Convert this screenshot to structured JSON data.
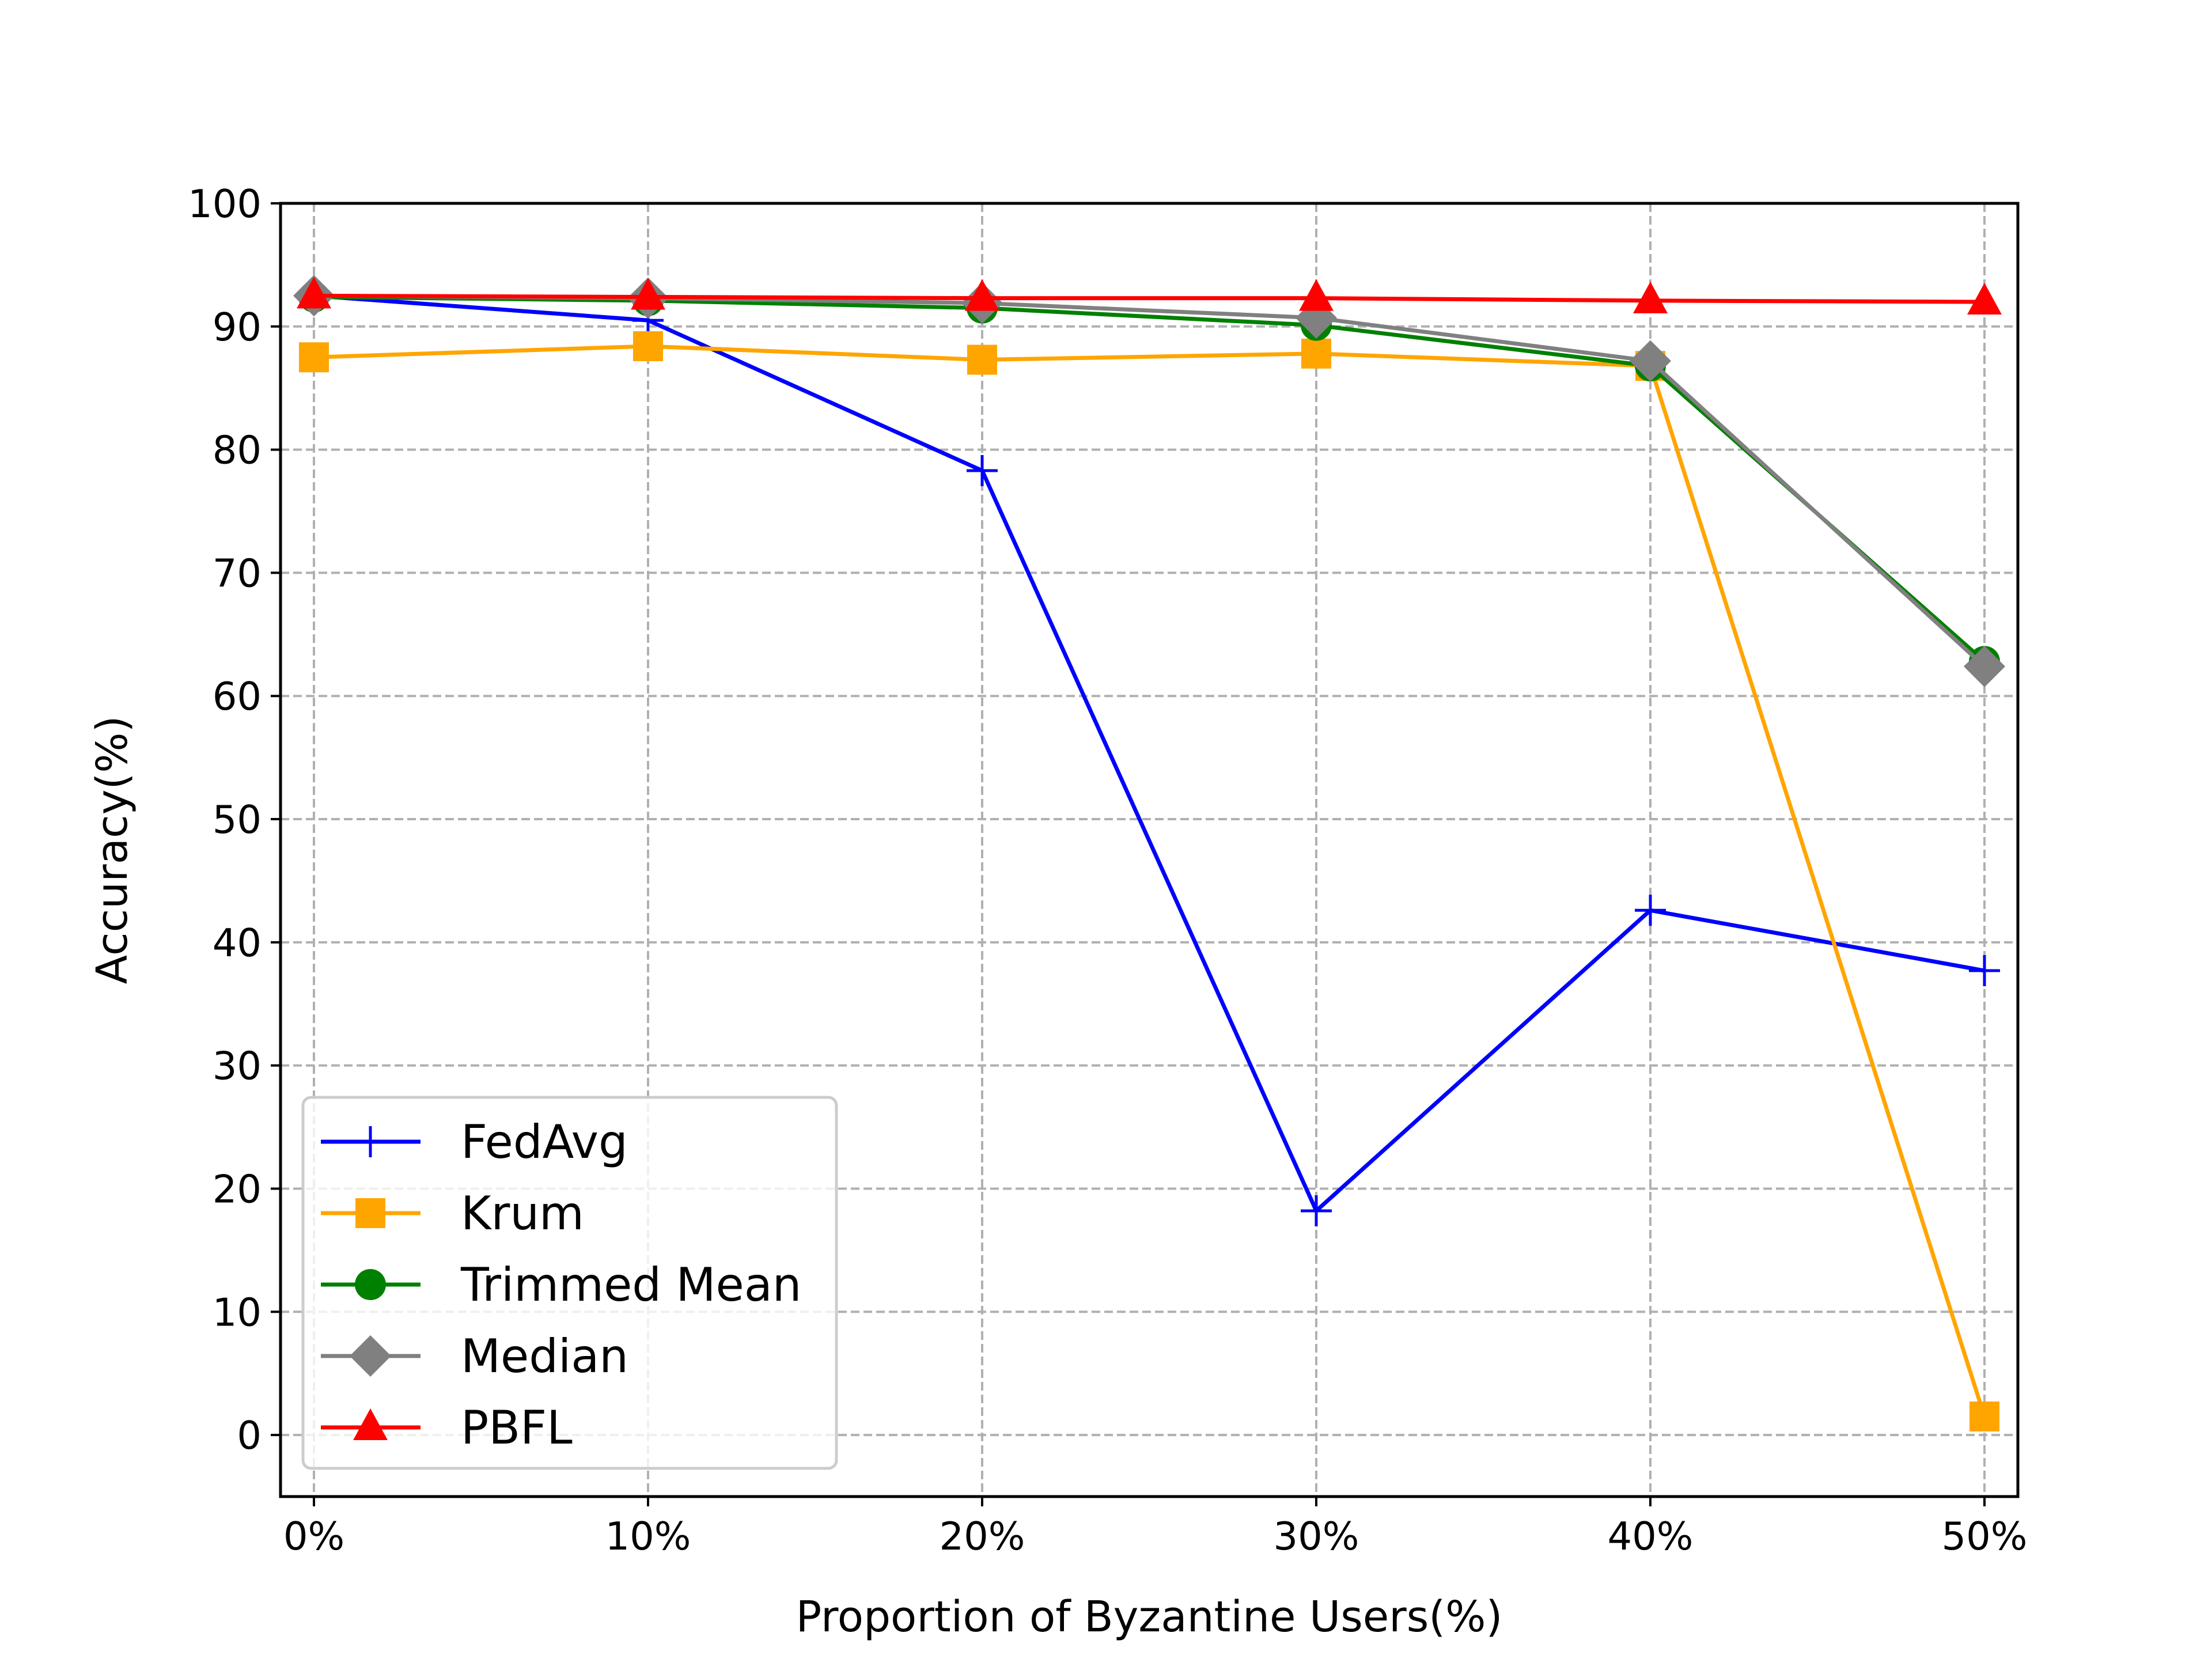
{
  "chart_data": {
    "type": "line",
    "title": "",
    "xlabel": "Proportion of Byzantine Users(%)",
    "ylabel": "Accuracy(%)",
    "categories": [
      "0%",
      "10%",
      "20%",
      "30%",
      "40%",
      "50%"
    ],
    "x": [
      0,
      10,
      20,
      30,
      40,
      50
    ],
    "ylim": [
      -5,
      100
    ],
    "yticks": [
      0,
      10,
      20,
      30,
      40,
      50,
      60,
      70,
      80,
      90,
      100
    ],
    "grid": true,
    "legend_position": "lower-left",
    "series": [
      {
        "name": "FedAvg",
        "color": "#0000ff",
        "marker": "plus",
        "values": [
          92.5,
          90.5,
          78.3,
          18.2,
          42.6,
          37.7
        ]
      },
      {
        "name": "Krum",
        "color": "#ffa500",
        "marker": "square",
        "values": [
          87.5,
          88.4,
          87.3,
          87.8,
          86.8,
          1.5
        ]
      },
      {
        "name": "Trimmed Mean",
        "color": "#008000",
        "marker": "circle",
        "values": [
          92.4,
          92.1,
          91.5,
          90.1,
          86.8,
          62.8
        ]
      },
      {
        "name": "Median",
        "color": "#808080",
        "marker": "diamond",
        "values": [
          92.5,
          92.3,
          91.9,
          90.7,
          87.2,
          62.4
        ]
      },
      {
        "name": "PBFL",
        "color": "#ff0000",
        "marker": "triangle",
        "values": [
          92.5,
          92.4,
          92.3,
          92.3,
          92.1,
          92.0
        ]
      }
    ]
  }
}
